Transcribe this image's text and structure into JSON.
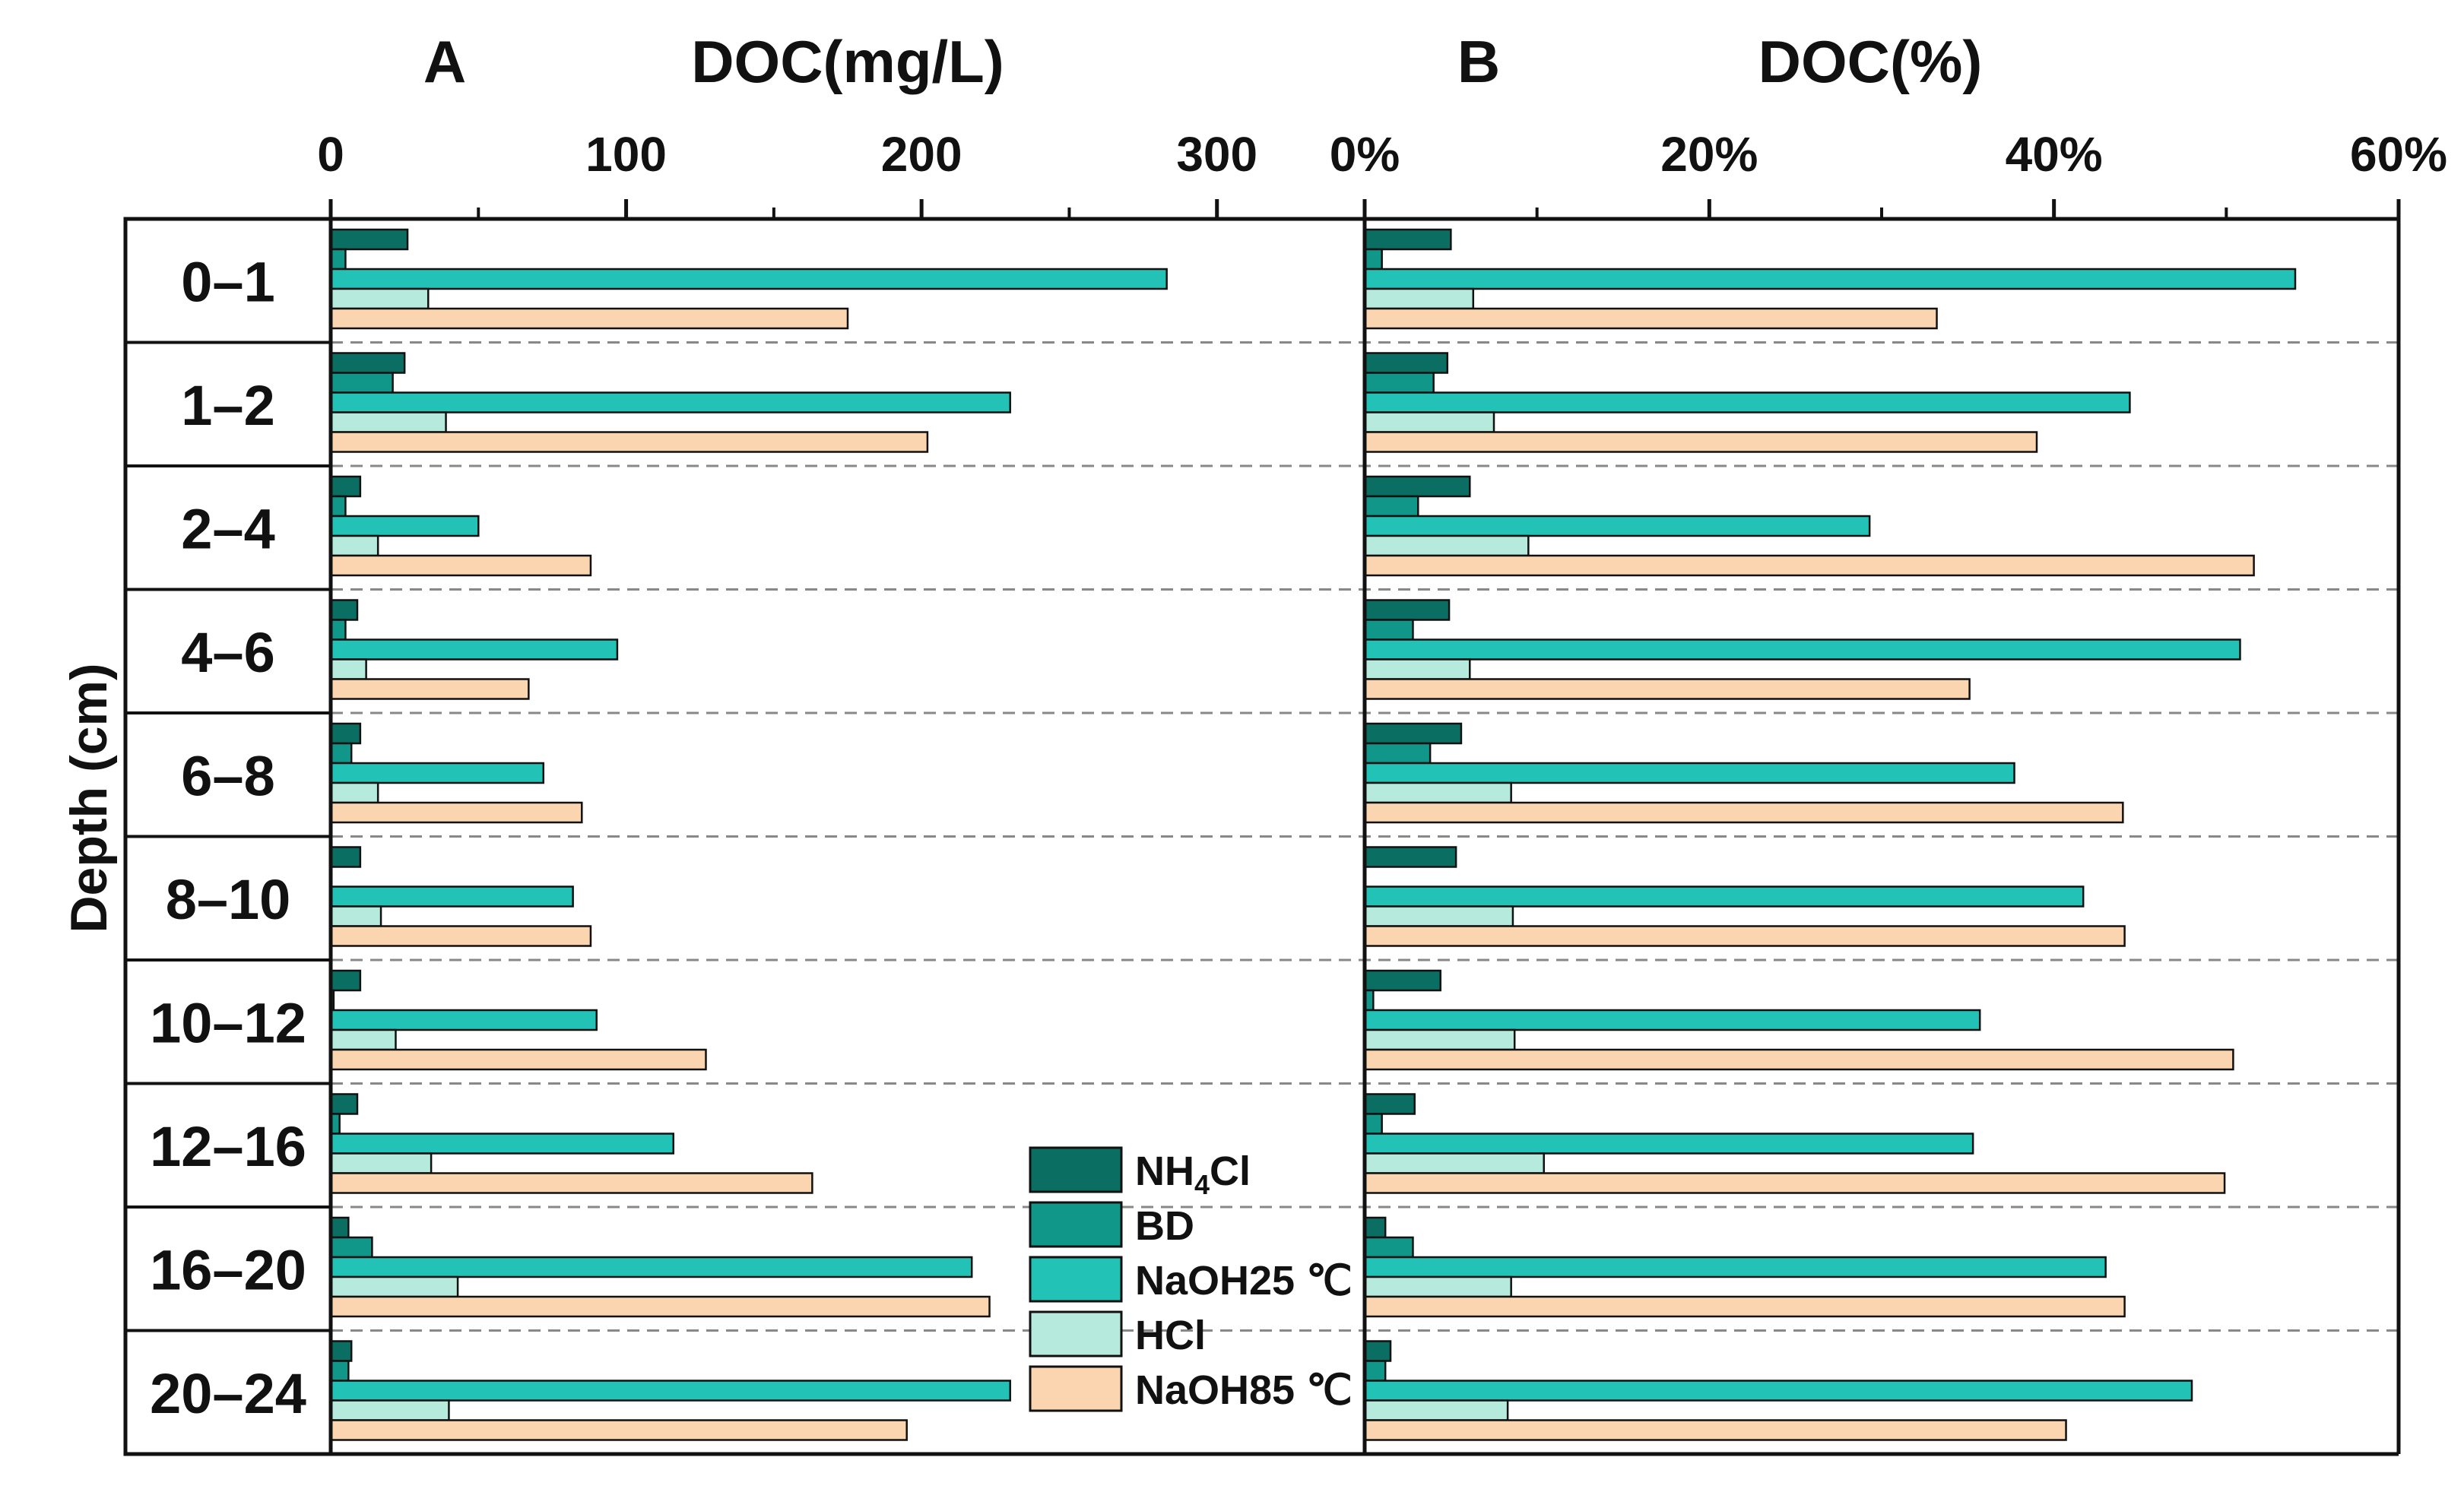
{
  "panel_labels": {
    "a": "A",
    "b": "B"
  },
  "y_axis": {
    "label": "Depth (cm)",
    "categories": [
      "0–1",
      "1–2",
      "2–4",
      "4–6",
      "6–8",
      "8–10",
      "10–12",
      "12–16",
      "16–20",
      "20–24"
    ]
  },
  "legend": [
    {
      "label": "NH4Cl",
      "main": "NH",
      "sub": "4",
      "rest": "Cl",
      "color": "#0b6e62"
    },
    {
      "label": "BD",
      "color": "#11978a"
    },
    {
      "label": "NaOH25 ℃",
      "color": "#22c3b6"
    },
    {
      "label": "HCl",
      "color": "#b6eadc"
    },
    {
      "label": "NaOH85 ℃",
      "color": "#fbd5b0"
    }
  ],
  "chart_data": [
    {
      "type": "bar",
      "orientation": "horizontal",
      "title": "DOC(mg/L)",
      "panel": "A",
      "xlim": [
        0,
        350
      ],
      "xticks": [
        0,
        100,
        200,
        300
      ],
      "xtick_labels": [
        "0",
        "100",
        "200",
        "300"
      ],
      "minor_ticks": [
        50,
        150,
        250
      ],
      "categories": [
        "0–1",
        "1–2",
        "2–4",
        "4–6",
        "6–8",
        "8–10",
        "10–12",
        "12–16",
        "16–20",
        "20–24"
      ],
      "series": [
        {
          "name": "NH4Cl",
          "values": [
            26,
            25,
            10,
            9,
            10,
            10,
            10,
            9,
            6,
            7
          ]
        },
        {
          "name": "BD",
          "values": [
            5,
            21,
            5,
            5,
            7,
            0,
            1,
            3,
            14,
            6
          ]
        },
        {
          "name": "NaOH25 ℃",
          "values": [
            283,
            230,
            50,
            97,
            72,
            82,
            90,
            116,
            217,
            230
          ]
        },
        {
          "name": "HCl",
          "values": [
            33,
            39,
            16,
            12,
            16,
            17,
            22,
            34,
            43,
            40
          ]
        },
        {
          "name": "NaOH85 ℃",
          "values": [
            175,
            202,
            88,
            67,
            85,
            88,
            127,
            163,
            223,
            195
          ]
        }
      ]
    },
    {
      "type": "bar",
      "orientation": "horizontal",
      "title": "DOC(%)",
      "panel": "B",
      "xlim": [
        0,
        60
      ],
      "xticks": [
        0,
        20,
        40,
        60
      ],
      "xtick_labels": [
        "0%",
        "20%",
        "40%",
        "60%"
      ],
      "minor_ticks": [
        10,
        30,
        50
      ],
      "categories": [
        "0–1",
        "1–2",
        "2–4",
        "4–6",
        "6–8",
        "8–10",
        "10–12",
        "12–16",
        "16–20",
        "20–24"
      ],
      "series": [
        {
          "name": "NH4Cl",
          "values": [
            5.0,
            4.8,
            6.1,
            4.9,
            5.6,
            5.3,
            4.4,
            2.9,
            1.2,
            1.5
          ]
        },
        {
          "name": "BD",
          "values": [
            1.0,
            4.0,
            3.1,
            2.8,
            3.8,
            0,
            0.5,
            1.0,
            2.8,
            1.2
          ]
        },
        {
          "name": "NaOH25 ℃",
          "values": [
            54.0,
            44.4,
            29.3,
            50.8,
            37.7,
            41.7,
            35.7,
            35.3,
            43.0,
            48.0
          ]
        },
        {
          "name": "HCl",
          "values": [
            6.3,
            7.5,
            9.5,
            6.1,
            8.5,
            8.6,
            8.7,
            10.4,
            8.5,
            8.3
          ]
        },
        {
          "name": "NaOH85 ℃",
          "values": [
            33.2,
            39.0,
            51.6,
            35.1,
            44.0,
            44.1,
            50.4,
            49.9,
            44.1,
            40.7
          ]
        }
      ]
    }
  ]
}
